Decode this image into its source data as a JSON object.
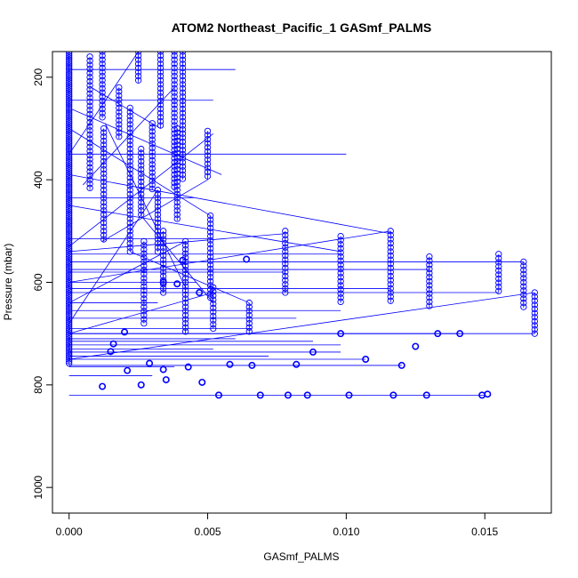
{
  "chart_data": {
    "type": "scatter",
    "title": "ATOM2 Northeast_Pacific_1 GASmf_PALMS",
    "xlabel": "GASmf_PALMS",
    "ylabel": "Pressure (mbar)",
    "xlim": [
      -0.0006,
      0.0174
    ],
    "ylim": [
      1050,
      150
    ],
    "y_reversed": true,
    "x_ticks": [
      0.0,
      0.005,
      0.01,
      0.015
    ],
    "x_tick_labels": [
      "0.000",
      "0.005",
      "0.010",
      "0.015"
    ],
    "y_ticks": [
      200,
      400,
      600,
      800,
      1000
    ],
    "y_tick_labels": [
      "200",
      "400",
      "600",
      "800",
      "1000"
    ],
    "grid": false,
    "marker": "open-circle",
    "connected": true,
    "color": "#0000ff",
    "columns": [
      {
        "x": 0.0,
        "p0": 150,
        "p1": 760,
        "step": 4
      },
      {
        "x": 0.00075,
        "p0": 160,
        "p1": 420,
        "step": 8
      },
      {
        "x": 0.0012,
        "p0": 150,
        "p1": 280,
        "step": 8
      },
      {
        "x": 0.00125,
        "p0": 300,
        "p1": 520,
        "step": 8
      },
      {
        "x": 0.0018,
        "p0": 220,
        "p1": 320,
        "step": 8
      },
      {
        "x": 0.0022,
        "p0": 260,
        "p1": 540,
        "step": 8
      },
      {
        "x": 0.0025,
        "p0": 150,
        "p1": 210,
        "step": 8
      },
      {
        "x": 0.0026,
        "p0": 340,
        "p1": 470,
        "step": 8
      },
      {
        "x": 0.0027,
        "p0": 520,
        "p1": 680,
        "step": 8
      },
      {
        "x": 0.003,
        "p0": 290,
        "p1": 420,
        "step": 8
      },
      {
        "x": 0.0032,
        "p0": 420,
        "p1": 540,
        "step": 8
      },
      {
        "x": 0.0033,
        "p0": 150,
        "p1": 300,
        "step": 8
      },
      {
        "x": 0.0034,
        "p0": 500,
        "p1": 620,
        "step": 8
      },
      {
        "x": 0.0038,
        "p0": 150,
        "p1": 420,
        "step": 8
      },
      {
        "x": 0.0039,
        "p0": 300,
        "p1": 480,
        "step": 8
      },
      {
        "x": 0.0041,
        "p0": 150,
        "p1": 400,
        "step": 8
      },
      {
        "x": 0.0042,
        "p0": 520,
        "p1": 700,
        "step": 8
      },
      {
        "x": 0.005,
        "p0": 305,
        "p1": 400,
        "step": 8
      },
      {
        "x": 0.0051,
        "p0": 470,
        "p1": 630,
        "step": 8
      },
      {
        "x": 0.0052,
        "p0": 610,
        "p1": 690,
        "step": 8
      },
      {
        "x": 0.0065,
        "p0": 640,
        "p1": 700,
        "step": 8
      },
      {
        "x": 0.0078,
        "p0": 500,
        "p1": 620,
        "step": 8
      },
      {
        "x": 0.0098,
        "p0": 510,
        "p1": 640,
        "step": 8
      },
      {
        "x": 0.0116,
        "p0": 500,
        "p1": 640,
        "step": 8
      },
      {
        "x": 0.013,
        "p0": 550,
        "p1": 650,
        "step": 8
      },
      {
        "x": 0.0155,
        "p0": 545,
        "p1": 620,
        "step": 8
      },
      {
        "x": 0.0164,
        "p0": 560,
        "p1": 650,
        "step": 8
      },
      {
        "x": 0.0168,
        "p0": 620,
        "p1": 700,
        "step": 8
      }
    ],
    "low_points": [
      [
        0.0012,
        803
      ],
      [
        0.0026,
        800
      ],
      [
        0.0035,
        790
      ],
      [
        0.0048,
        795
      ],
      [
        0.0054,
        820
      ],
      [
        0.0069,
        820
      ],
      [
        0.0079,
        820
      ],
      [
        0.0086,
        820
      ],
      [
        0.0101,
        820
      ],
      [
        0.0117,
        820
      ],
      [
        0.0129,
        820
      ],
      [
        0.0149,
        820
      ],
      [
        0.0151,
        818
      ],
      [
        0.0015,
        735
      ],
      [
        0.0021,
        772
      ],
      [
        0.0029,
        758
      ],
      [
        0.0034,
        770
      ],
      [
        0.0043,
        765
      ],
      [
        0.0058,
        760
      ],
      [
        0.0066,
        762
      ],
      [
        0.0082,
        760
      ],
      [
        0.0088,
        736
      ],
      [
        0.0098,
        700
      ],
      [
        0.0107,
        750
      ],
      [
        0.012,
        762
      ],
      [
        0.0125,
        725
      ],
      [
        0.0133,
        700
      ],
      [
        0.0141,
        700
      ],
      [
        0.0016,
        720
      ],
      [
        0.002,
        697
      ],
      [
        0.0034,
        600
      ],
      [
        0.0047,
        620
      ],
      [
        0.0064,
        555
      ],
      [
        0.0041,
        557
      ],
      [
        0.0039,
        603
      ]
    ],
    "hlines": [
      [
        0.0,
        0.0168,
        700
      ],
      [
        0.0,
        0.015,
        820
      ],
      [
        0.0,
        0.0141,
        700
      ],
      [
        0.0,
        0.012,
        762
      ],
      [
        0.0,
        0.0107,
        750
      ],
      [
        0.0,
        0.0098,
        736
      ],
      [
        0.0,
        0.0164,
        560
      ],
      [
        0.0,
        0.0155,
        620
      ],
      [
        0.0,
        0.0116,
        612
      ],
      [
        0.0,
        0.0098,
        545
      ],
      [
        0.0,
        0.0078,
        580
      ],
      [
        0.0,
        0.013,
        575
      ],
      [
        0.0,
        0.005,
        515
      ],
      [
        0.0,
        0.0045,
        435
      ],
      [
        0.0,
        0.01,
        350
      ],
      [
        0.0,
        0.0052,
        245
      ],
      [
        0.0,
        0.006,
        185
      ],
      [
        0.0,
        0.0098,
        655
      ],
      [
        0.0,
        0.0082,
        670
      ],
      [
        0.0,
        0.0066,
        690
      ],
      [
        0.0,
        0.006,
        710
      ],
      [
        0.0,
        0.0052,
        730
      ],
      [
        0.0,
        0.0072,
        744
      ],
      [
        0.0,
        0.0038,
        765
      ],
      [
        0.0,
        0.003,
        782
      ],
      [
        0.0,
        0.0046,
        600
      ],
      [
        0.0,
        0.0032,
        640
      ],
      [
        0.0,
        0.0098,
        722
      ],
      [
        0.0,
        0.0088,
        715
      ]
    ],
    "slants": [
      [
        0.0,
        750,
        0.0168,
        620
      ],
      [
        0.0,
        600,
        0.0116,
        500
      ],
      [
        0.0,
        450,
        0.0098,
        540
      ],
      [
        0.0,
        300,
        0.0051,
        470
      ],
      [
        0.0,
        540,
        0.0078,
        505
      ],
      [
        0.0,
        390,
        0.0116,
        505
      ],
      [
        0.0,
        260,
        0.0055,
        390
      ],
      [
        0.0,
        530,
        0.0052,
        310
      ],
      [
        0.0,
        640,
        0.0042,
        520
      ],
      [
        0.0013,
        290,
        0.0042,
        610
      ],
      [
        0.0005,
        410,
        0.0038,
        220
      ],
      [
        0.0,
        350,
        0.0025,
        150
      ],
      [
        0.0,
        680,
        0.0032,
        420
      ],
      [
        0.0012,
        520,
        0.005,
        400
      ],
      [
        0.0026,
        470,
        0.0052,
        640
      ],
      [
        0.0008,
        220,
        0.0033,
        300
      ],
      [
        0.0,
        700,
        0.0052,
        620
      ],
      [
        0.0022,
        540,
        0.0065,
        640
      ]
    ]
  }
}
